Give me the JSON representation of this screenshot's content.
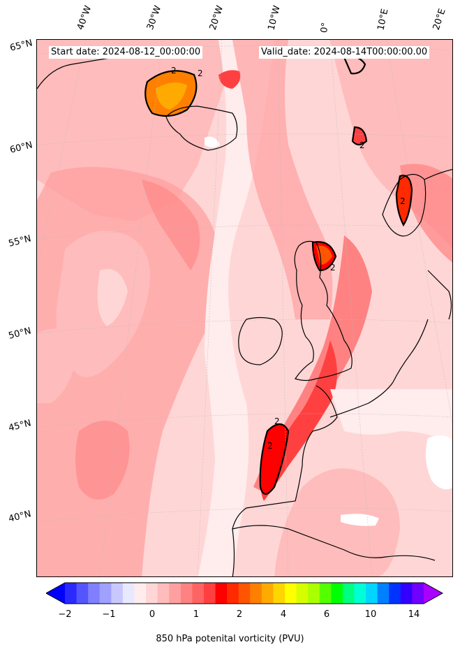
{
  "header": {
    "start_date": "Start date: 2024-08-12_00:00:00",
    "valid_date": "Valid_date: 2024-08-14T00:00:00.00"
  },
  "longitude_labels": [
    "40°W",
    "30°W",
    "20°W",
    "10°W",
    "0°",
    "10°E",
    "20°E"
  ],
  "latitude_labels": [
    "65°N",
    "60°N",
    "55°N",
    "50°N",
    "45°N",
    "40°N"
  ],
  "contour_labels": [
    "2",
    "2",
    "2",
    "2",
    "2",
    "2",
    "2"
  ],
  "colorbar": {
    "label": "850 hPa potenital vorticity (PVU)",
    "tick_labels": [
      "−2",
      "−1",
      "0",
      "1",
      "2",
      "4",
      "6",
      "10",
      "14"
    ],
    "colors": [
      "#0000ff",
      "#2a2aff",
      "#5555ff",
      "#7f7fff",
      "#a0a0ff",
      "#c8c8ff",
      "#e8e8ff",
      "#ffecec",
      "#ffd6d6",
      "#ffbcbc",
      "#ffa0a0",
      "#ff8282",
      "#ff6464",
      "#ff4040",
      "#ff0000",
      "#ff2a00",
      "#ff5500",
      "#ff8000",
      "#ffaa00",
      "#ffd500",
      "#ffff00",
      "#d5ff00",
      "#aaff00",
      "#55ff00",
      "#00ff00",
      "#00ff80",
      "#00ffd5",
      "#00d5ff",
      "#0080ff",
      "#0033ff",
      "#3300ff",
      "#7000ff",
      "#aa00ff"
    ]
  }
}
